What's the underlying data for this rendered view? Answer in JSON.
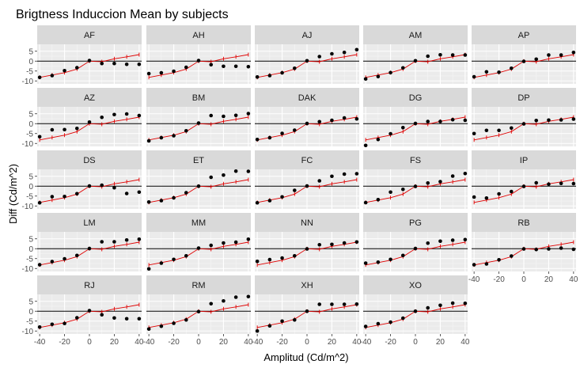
{
  "chart_data": {
    "type": "scatter",
    "title": "Brigtness Induccion Mean by subjects",
    "xlabel": "Amplitud (Cd/m^2)",
    "ylabel": "Diff (Cd/m^2)",
    "xlim": [
      -42,
      42
    ],
    "ylim": [
      -11.5,
      8.5
    ],
    "x_ticks": [
      -40,
      -20,
      0,
      20,
      40
    ],
    "x_tick_labels": [
      "-40",
      "-20",
      "0",
      "20",
      "40"
    ],
    "y_ticks": [
      -10,
      -5,
      0,
      5
    ],
    "y_tick_labels": [
      "-10",
      "-5",
      "0",
      "5"
    ],
    "x": [
      -40,
      -30,
      -20,
      -10,
      0,
      10,
      20,
      30,
      40
    ],
    "reference_line": {
      "y": 0,
      "color": "#000000"
    },
    "model_line": {
      "color": "#e00000",
      "x": [
        -40,
        -30,
        -20,
        -10,
        0,
        10,
        20,
        30,
        40
      ],
      "y": [
        -8.2,
        -7.0,
        -5.8,
        -4.0,
        0,
        -0.3,
        1.2,
        2.2,
        3.3
      ]
    },
    "point_color": "#000000",
    "grid": true,
    "panels": [
      {
        "label": "AF",
        "y": [
          -8.2,
          -7.3,
          -4.8,
          -3.3,
          0.3,
          -1.2,
          -1.2,
          -1.6,
          -1.6
        ]
      },
      {
        "label": "AH",
        "y": [
          -6.3,
          -5.9,
          -5.1,
          -3.1,
          0.3,
          -1.8,
          -2.6,
          -2.6,
          -2.8
        ]
      },
      {
        "label": "AJ",
        "y": [
          -8.0,
          -7.3,
          -5.9,
          -3.6,
          0.2,
          2.3,
          3.7,
          4.4,
          5.8
        ]
      },
      {
        "label": "AM",
        "y": [
          -9.0,
          -7.8,
          -5.8,
          -3.4,
          0.2,
          2.5,
          3.2,
          3.1,
          3.1
        ]
      },
      {
        "label": "AP",
        "y": [
          -7.9,
          -5.4,
          -5.6,
          -3.6,
          -0.1,
          1.0,
          3.1,
          3.1,
          4.4
        ]
      },
      {
        "label": "AZ",
        "y": [
          -6.6,
          -3.1,
          -3.0,
          -2.4,
          0.8,
          3.2,
          4.6,
          4.9,
          4.1
        ]
      },
      {
        "label": "BM",
        "y": [
          -8.7,
          -7.1,
          -6.1,
          -3.6,
          0.3,
          4.1,
          3.7,
          4.2,
          5.1
        ]
      },
      {
        "label": "DAK",
        "y": [
          -8.0,
          -7.1,
          -4.9,
          -3.3,
          0.1,
          1.0,
          1.7,
          2.9,
          2.4
        ]
      },
      {
        "label": "DG",
        "y": [
          -11.0,
          -8.0,
          -5.1,
          -2.0,
          0.1,
          1.1,
          1.1,
          2.0,
          1.7
        ]
      },
      {
        "label": "DP",
        "y": [
          -5.0,
          -3.4,
          -3.4,
          -2.2,
          -0.1,
          1.6,
          1.8,
          1.9,
          2.3
        ]
      },
      {
        "label": "DS",
        "y": [
          -8.4,
          -5.3,
          -5.2,
          -3.8,
          0.1,
          0.5,
          -0.8,
          -3.7,
          -3.0
        ]
      },
      {
        "label": "ET",
        "y": [
          -8.0,
          -7.3,
          -5.9,
          -3.3,
          0.0,
          4.5,
          5.6,
          7.6,
          7.5
        ]
      },
      {
        "label": "FC",
        "y": [
          -8.4,
          -7.3,
          -5.4,
          -2.1,
          0.1,
          2.7,
          5.0,
          6.1,
          6.3
        ]
      },
      {
        "label": "FS",
        "y": [
          -8.3,
          -6.8,
          -3.0,
          -1.6,
          -0.1,
          1.6,
          2.3,
          5.1,
          6.4
        ]
      },
      {
        "label": "IP",
        "y": [
          -5.5,
          -6.0,
          -3.9,
          -2.7,
          -0.1,
          1.7,
          1.0,
          1.4,
          1.3
        ]
      },
      {
        "label": "LM",
        "y": [
          -8.1,
          -6.5,
          -5.1,
          -3.4,
          0.1,
          3.5,
          3.5,
          4.4,
          4.8
        ]
      },
      {
        "label": "MM",
        "y": [
          -10.2,
          -7.3,
          -5.4,
          -3.6,
          0.3,
          1.7,
          2.9,
          3.3,
          4.8
        ]
      },
      {
        "label": "NN",
        "y": [
          -6.4,
          -5.5,
          -4.7,
          -3.6,
          -0.1,
          2.0,
          2.2,
          2.9,
          3.4
        ]
      },
      {
        "label": "PG",
        "y": [
          -7.3,
          -6.8,
          -5.4,
          -3.4,
          0.1,
          2.8,
          3.8,
          4.3,
          4.6
        ]
      },
      {
        "label": "RB",
        "y": [
          -8.1,
          -7.7,
          -5.6,
          -3.7,
          -0.1,
          -0.4,
          -0.1,
          0.3,
          -0.3
        ]
      },
      {
        "label": "RJ",
        "y": [
          -8.0,
          -6.6,
          -6.2,
          -3.3,
          0.3,
          -1.8,
          -3.4,
          -3.8,
          -3.8
        ]
      },
      {
        "label": "RM",
        "y": [
          -9.0,
          -7.6,
          -6.1,
          -4.4,
          -0.2,
          3.8,
          5.2,
          7.1,
          7.4
        ]
      },
      {
        "label": "XH",
        "y": [
          -10.0,
          -7.4,
          -5.0,
          -4.4,
          0.0,
          3.5,
          3.5,
          3.5,
          3.6
        ]
      },
      {
        "label": "XO",
        "y": [
          -7.7,
          -6.3,
          -5.5,
          -3.5,
          0.0,
          1.7,
          3.0,
          4.1,
          4.0
        ]
      }
    ]
  }
}
